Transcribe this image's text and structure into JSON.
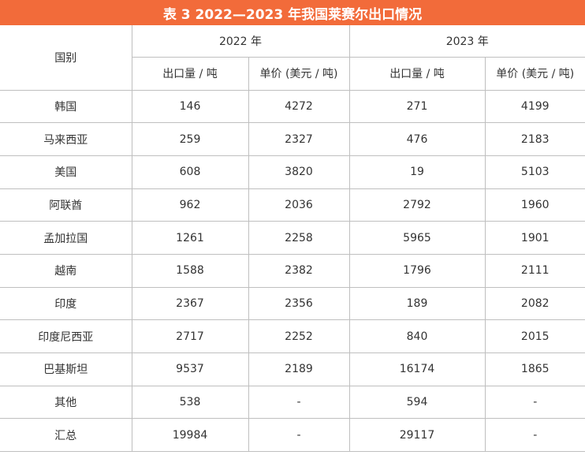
{
  "title": "表 3 2022—2023 年我国莱赛尔出口情况",
  "header": {
    "country": "国别",
    "year_2022": "2022 年",
    "year_2023": "2023 年",
    "export_volume": "出口量 / 吨",
    "unit_price": "单价 (美元 / 吨)"
  },
  "rows": [
    {
      "country": "韩国",
      "vol_2022": "146",
      "price_2022": "4272",
      "vol_2023": "271",
      "price_2023": "4199"
    },
    {
      "country": "马来西亚",
      "vol_2022": "259",
      "price_2022": "2327",
      "vol_2023": "476",
      "price_2023": "2183"
    },
    {
      "country": "美国",
      "vol_2022": "608",
      "price_2022": "3820",
      "vol_2023": "19",
      "price_2023": "5103"
    },
    {
      "country": "阿联酋",
      "vol_2022": "962",
      "price_2022": "2036",
      "vol_2023": "2792",
      "price_2023": "1960"
    },
    {
      "country": "孟加拉国",
      "vol_2022": "1261",
      "price_2022": "2258",
      "vol_2023": "5965",
      "price_2023": "1901"
    },
    {
      "country": "越南",
      "vol_2022": "1588",
      "price_2022": "2382",
      "vol_2023": "1796",
      "price_2023": "2111"
    },
    {
      "country": "印度",
      "vol_2022": "2367",
      "price_2022": "2356",
      "vol_2023": "189",
      "price_2023": "2082"
    },
    {
      "country": "印度尼西亚",
      "vol_2022": "2717",
      "price_2022": "2252",
      "vol_2023": "840",
      "price_2023": "2015"
    },
    {
      "country": "巴基斯坦",
      "vol_2022": "9537",
      "price_2022": "2189",
      "vol_2023": "16174",
      "price_2023": "1865"
    },
    {
      "country": "其他",
      "vol_2022": "538",
      "price_2022": "-",
      "vol_2023": "594",
      "price_2023": "-"
    },
    {
      "country": "汇总",
      "vol_2022": "19984",
      "price_2022": "-",
      "vol_2023": "29117",
      "price_2023": "-"
    }
  ],
  "colors": {
    "title_background": "#f26b3a",
    "title_text": "#ffffff",
    "grid_lines": "#bfbfbf",
    "cell_text": "#333333"
  }
}
